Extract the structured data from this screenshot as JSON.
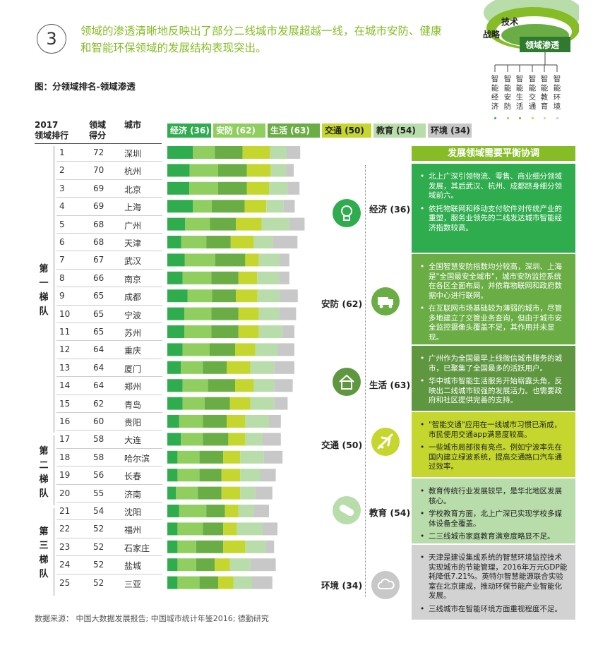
{
  "header": {
    "number": "3",
    "headline": "领域的渗透清晰地反映出了部分二线城市发展超越一线，在城市安防、健康和智能环保领域的发展结构表现突出。"
  },
  "diagram": {
    "labels": [
      "技术",
      "战略",
      "领域渗透"
    ],
    "columns": [
      "智能经济",
      "智能安防",
      "智能生活",
      "智能交通",
      "智能教育",
      "智能环境"
    ]
  },
  "figure_title": "图：分领域排名-领域渗透",
  "table_headers": {
    "rank": "2017\n领域排行",
    "score": "领域\n得分",
    "city": "城市"
  },
  "tiers": [
    "第\n一\n梯\n队",
    "第\n二\n梯\n队",
    "第\n三\n梯\n队"
  ],
  "legend": [
    "经济 (36)",
    "安防 (62)",
    "生活 (63)",
    "交通 (50)",
    "教育 (54)",
    "环境 (34)"
  ],
  "colors": [
    "#2eac4e",
    "#8fce5f",
    "#6aad45",
    "#c5d72e",
    "#b8dcaa",
    "#c8c8c8"
  ],
  "chart_data": {
    "type": "bar",
    "stacked": true,
    "orientation": "horizontal",
    "series_names": [
      "经济 (36)",
      "安防 (62)",
      "生活 (63)",
      "交通 (50)",
      "教育 (54)",
      "环境 (34)"
    ],
    "rows": [
      {
        "rank": "1",
        "score": "72",
        "city": "深圳",
        "segments": [
          7.5,
          6.5,
          8.2,
          8.0,
          5.0,
          4.0
        ]
      },
      {
        "rank": "2",
        "score": "70",
        "city": "杭州",
        "segments": [
          6.6,
          8.4,
          8.5,
          7.0,
          4.5,
          2.3
        ]
      },
      {
        "rank": "3",
        "score": "69",
        "city": "北京",
        "segments": [
          6.5,
          8.5,
          8.5,
          6.5,
          5.6,
          3.4
        ]
      },
      {
        "rank": "4",
        "score": "69",
        "city": "上海",
        "segments": [
          7.5,
          5.6,
          9.7,
          6.4,
          5.0,
          3.4
        ]
      },
      {
        "rank": "5",
        "score": "68",
        "city": "广州",
        "segments": [
          5.2,
          7.4,
          7.6,
          7.6,
          8.2,
          4.5
        ]
      },
      {
        "rank": "6",
        "score": "68",
        "city": "天津",
        "segments": [
          4.1,
          7.4,
          7.2,
          6.8,
          5.6,
          7.3
        ]
      },
      {
        "rank": "7",
        "score": "67",
        "city": "武汉",
        "segments": [
          5.1,
          9.0,
          8.9,
          4.0,
          6.0,
          3.0
        ]
      },
      {
        "rank": "8",
        "score": "66",
        "city": "南京",
        "segments": [
          4.5,
          8.5,
          8.0,
          5.5,
          6.5,
          3.0
        ]
      },
      {
        "rank": "9",
        "score": "65",
        "city": "成都",
        "segments": [
          6.0,
          7.2,
          7.0,
          6.4,
          6.4,
          5.5
        ]
      },
      {
        "rank": "10",
        "score": "65",
        "city": "宁波",
        "segments": [
          5.0,
          8.0,
          8.0,
          6.0,
          6.0,
          5.0
        ]
      },
      {
        "rank": "11",
        "score": "65",
        "city": "苏州",
        "segments": [
          5.0,
          8.0,
          8.0,
          6.0,
          7.0,
          3.5
        ]
      },
      {
        "rank": "12",
        "score": "64",
        "city": "重庆",
        "segments": [
          4.5,
          8.0,
          7.5,
          6.0,
          6.5,
          5.0
        ]
      },
      {
        "rank": "13",
        "score": "64",
        "city": "厦门",
        "segments": [
          4.0,
          6.5,
          7.0,
          7.0,
          7.0,
          6.0
        ]
      },
      {
        "rank": "14",
        "score": "64",
        "city": "郑州",
        "segments": [
          4.5,
          7.5,
          8.0,
          5.5,
          6.0,
          5.5
        ]
      },
      {
        "rank": "15",
        "score": "62",
        "city": "青岛",
        "segments": [
          4.5,
          6.5,
          7.5,
          6.0,
          7.0,
          4.0
        ]
      },
      {
        "rank": "16",
        "score": "60",
        "city": "贵阳",
        "segments": [
          3.5,
          7.0,
          7.0,
          5.5,
          7.0,
          3.5
        ]
      },
      {
        "rank": "17",
        "score": "58",
        "city": "大连",
        "segments": [
          4.0,
          6.5,
          7.5,
          5.0,
          5.0,
          5.5
        ]
      },
      {
        "rank": "18",
        "score": "58",
        "city": "哈尔滨",
        "segments": [
          3.0,
          6.5,
          7.0,
          5.0,
          7.0,
          5.5
        ]
      },
      {
        "rank": "19",
        "score": "56",
        "city": "长春",
        "segments": [
          3.0,
          6.5,
          6.5,
          5.5,
          6.0,
          4.5
        ]
      },
      {
        "rank": "20",
        "score": "55",
        "city": "济南",
        "segments": [
          2.5,
          6.5,
          7.0,
          5.5,
          4.5,
          5.0
        ]
      },
      {
        "rank": "21",
        "score": "54",
        "city": "沈阳",
        "segments": [
          3.5,
          8.0,
          5.5,
          4.0,
          4.5,
          4.5
        ]
      },
      {
        "rank": "22",
        "score": "52",
        "city": "福州",
        "segments": [
          3.0,
          7.5,
          6.0,
          4.0,
          7.5,
          4.5
        ]
      },
      {
        "rank": "23",
        "score": "52",
        "city": "石家庄",
        "segments": [
          3.0,
          5.5,
          8.0,
          6.5,
          6.0,
          2.5
        ]
      },
      {
        "rank": "24",
        "score": "52",
        "city": "盐城",
        "segments": [
          3.0,
          5.5,
          5.5,
          4.5,
          6.0,
          7.5
        ]
      },
      {
        "rank": "25",
        "score": "52",
        "city": "三亚",
        "segments": [
          3.0,
          6.5,
          5.5,
          4.5,
          5.5,
          6.0
        ]
      }
    ]
  },
  "side_panel": {
    "title": "发展领域需要平衡协调",
    "domains": [
      {
        "name": "经济 (36)",
        "icon": "lightbulb-icon",
        "bullets": [
          "北上广深引领物流、零售、商业细分领域发展，其后武汉、杭州、成都跻身细分领域前六。",
          "依托物联网和移动支付软件对传统产业的重塑，服务业领先的二线发达城市智能经济指数较高。"
        ]
      },
      {
        "name": "安防 (62)",
        "icon": "truck-icon",
        "bullets": [
          "全国智慧安防指数均分较高，深圳、上海是\"全国最安全城市\"，城市安防监控系统在各区全面布局，并依靠物联网和政府数据中心进行联网。",
          "在互联网市场基础较为薄弱的城市，尽管多地建立了交管业务查询，但由于城市安全监控摄像头覆盖不足，其作用并未显现。"
        ]
      },
      {
        "name": "生活 (63)",
        "icon": "home-icon",
        "bullets": [
          "广州作为全国最早上线微信城市服务的城市，已聚集了全国最多的活跃用户。",
          "华中城市智能生活服务开始崭露头角，反映出二线城市较强的发展活力。也需要政府和社区提供完善的支持。"
        ]
      },
      {
        "name": "交通 (50)",
        "icon": "airplane-icon",
        "bullets": [
          "\"智能交通\"应用在一线城市习惯已渐成，市民使用交通app满意度较高。",
          "一些城市局部很有亮点。例如宁波率先在国内建立绿波系统，提高交通路口汽车通过效率。"
        ]
      },
      {
        "name": "教育 (54)",
        "icon": "pill-icon",
        "bullets": [
          "教育传统行业发展较早，是华北地区发展核心。",
          "学校教育方面，北上广深已实现学校多媒体设备全覆盖。",
          "二三线城市家庭教育满意度略显不足。"
        ]
      },
      {
        "name": "环境 (34)",
        "icon": "cloud-icon",
        "bullets": [
          "天津是建设集成系统的智慧环境监控技术实现城市的节能管理，2016年万元GDP能耗降低7.21%。英特尔智慧能源联合实验室在北京建成，推动环保节能产业智能化发展。",
          "三线城市在智能环境方面重视程度不足。"
        ]
      }
    ]
  },
  "source": "数据来源：  中国大数据发展报告; 中国城市统计年鉴2016; 德勤研究"
}
